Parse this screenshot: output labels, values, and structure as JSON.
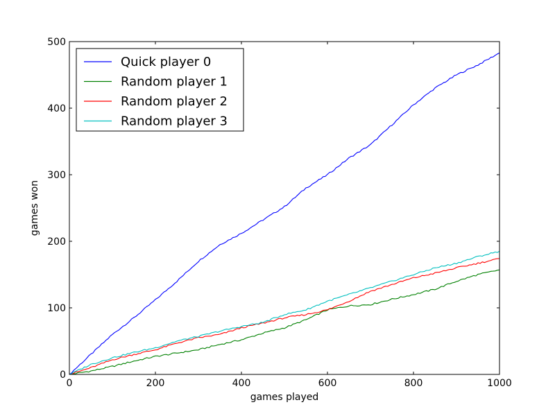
{
  "chart_data": {
    "type": "line",
    "title": "",
    "xlabel": "games played",
    "ylabel": "games won",
    "xlim": [
      0,
      1000
    ],
    "ylim": [
      0,
      500
    ],
    "xticks": [
      0,
      200,
      400,
      600,
      800,
      1000
    ],
    "yticks": [
      0,
      100,
      200,
      300,
      400,
      500
    ],
    "x": [
      0,
      50,
      100,
      150,
      200,
      250,
      300,
      350,
      400,
      450,
      500,
      550,
      600,
      650,
      700,
      750,
      800,
      850,
      900,
      950,
      1000
    ],
    "series": [
      {
        "name": "Quick player 0",
        "color": "#0000ff",
        "values": [
          0,
          30,
          60,
          85,
          112,
          140,
          170,
          195,
          212,
          232,
          252,
          280,
          300,
          325,
          345,
          375,
          405,
          430,
          450,
          465,
          483
        ]
      },
      {
        "name": "Random player 1",
        "color": "#008000",
        "values": [
          0,
          5,
          12,
          20,
          27,
          32,
          37,
          45,
          52,
          62,
          70,
          82,
          97,
          103,
          105,
          113,
          120,
          128,
          140,
          150,
          157
        ]
      },
      {
        "name": "Random player 2",
        "color": "#ff0000",
        "values": [
          0,
          10,
          22,
          30,
          37,
          47,
          55,
          60,
          70,
          77,
          85,
          90,
          97,
          110,
          125,
          135,
          145,
          152,
          160,
          167,
          174
        ]
      },
      {
        "name": "Random player 3",
        "color": "#00bfbf",
        "values": [
          0,
          15,
          25,
          33,
          40,
          50,
          57,
          65,
          72,
          78,
          90,
          97,
          110,
          120,
          130,
          140,
          150,
          160,
          167,
          177,
          185
        ]
      }
    ],
    "legend": "top-left",
    "grid": false
  }
}
